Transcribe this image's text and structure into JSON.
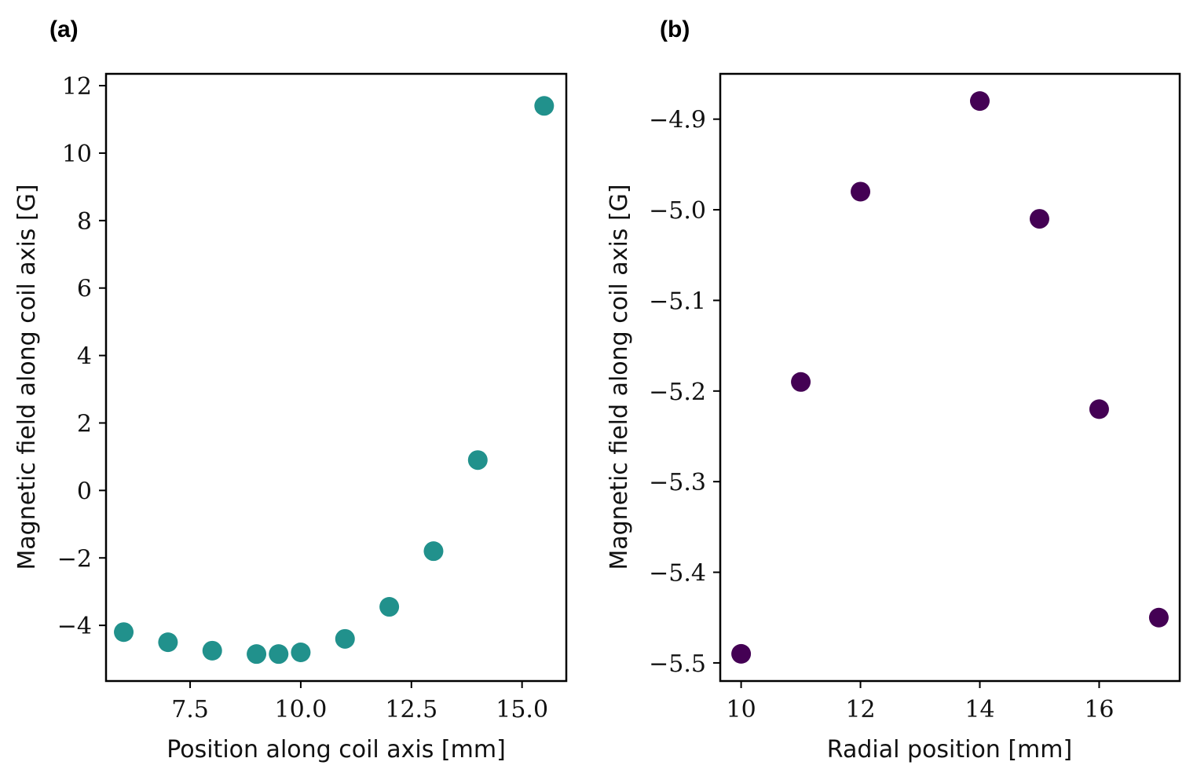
{
  "chart_data": [
    {
      "panel_label": "(a)",
      "type": "scatter",
      "title": "",
      "xlabel": "Position along coil axis [mm]",
      "ylabel": "Magnetic field along coil axis [G]",
      "xlim": [
        5.6,
        16.0
      ],
      "ylim": [
        -5.65,
        12.35
      ],
      "xticks": [
        7.5,
        10.0,
        12.5,
        15.0
      ],
      "xtick_labels": [
        "7.5",
        "10.0",
        "12.5",
        "15.0"
      ],
      "yticks": [
        -4,
        -2,
        0,
        2,
        4,
        6,
        8,
        10,
        12
      ],
      "ytick_labels": [
        "−4",
        "−2",
        "0",
        "2",
        "4",
        "6",
        "8",
        "10",
        "12"
      ],
      "color": "#21918c",
      "x": [
        6,
        7,
        8,
        9,
        9.5,
        10,
        11,
        12,
        13,
        14,
        15.5
      ],
      "y": [
        -4.2,
        -4.5,
        -4.75,
        -4.85,
        -4.85,
        -4.8,
        -4.4,
        -3.45,
        -1.8,
        0.9,
        11.4
      ]
    },
    {
      "panel_label": "(b)",
      "type": "scatter",
      "title": "",
      "xlabel": "Radial position [mm]",
      "ylabel": "Magnetic field along coil axis [G]",
      "xlim": [
        9.65,
        17.35
      ],
      "ylim": [
        -5.52,
        -4.85
      ],
      "xticks": [
        10,
        12,
        14,
        16
      ],
      "xtick_labels": [
        "10",
        "12",
        "14",
        "16"
      ],
      "yticks": [
        -5.5,
        -5.4,
        -5.3,
        -5.2,
        -5.1,
        -5.0,
        -4.9
      ],
      "ytick_labels": [
        "−5.5",
        "−5.4",
        "−5.3",
        "−5.2",
        "−5.1",
        "−5.0",
        "−4.9"
      ],
      "color": "#440154",
      "x": [
        10,
        11,
        12,
        14,
        15,
        16,
        17
      ],
      "y": [
        -5.49,
        -5.19,
        -4.98,
        -4.88,
        -5.01,
        -5.22,
        -5.45
      ]
    }
  ]
}
